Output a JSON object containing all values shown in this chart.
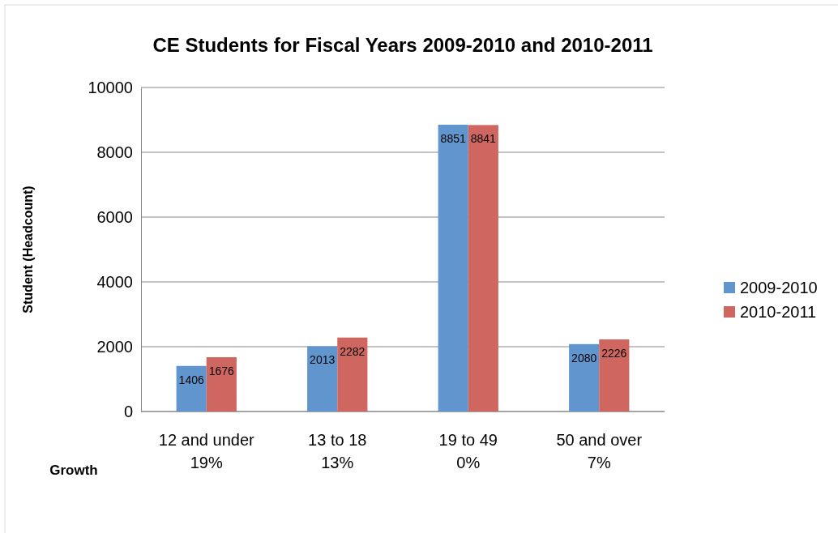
{
  "chart_data": {
    "type": "bar",
    "title": "CE Students for Fiscal Years 2009-2010 and 2010-2011",
    "ylabel": "Student (Headcount)",
    "categories": [
      "12 and under\n19%",
      "13 to 18\n13%",
      "19 to 49\n0%",
      "50 and over\n7%"
    ],
    "series": [
      {
        "name": "2009-2010",
        "color": "#6096cd",
        "values": [
          1406,
          2013,
          8851,
          2080
        ]
      },
      {
        "name": "2010-2011",
        "color": "#cf6660",
        "values": [
          1676,
          2282,
          8841,
          2226
        ]
      }
    ],
    "ylim": [
      0,
      10000
    ],
    "yticks": [
      0,
      2000,
      4000,
      6000,
      8000,
      10000
    ],
    "grid": "y",
    "legend": "right",
    "data_labels": true,
    "annotations": [
      "Growth"
    ]
  }
}
